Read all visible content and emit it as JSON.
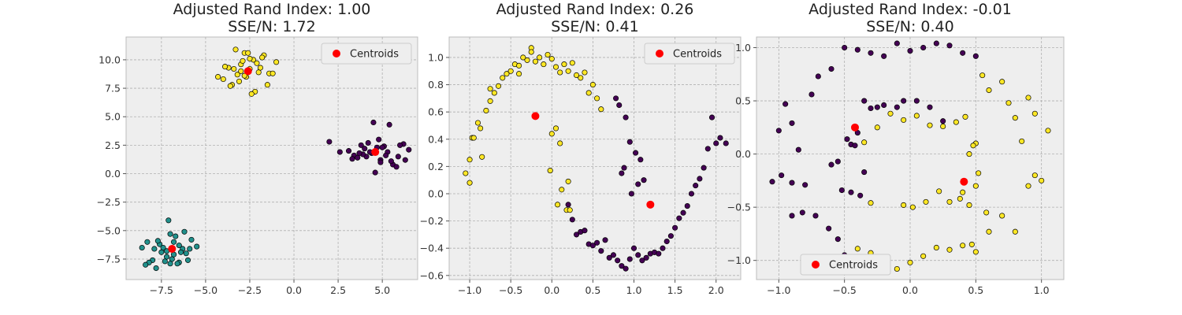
{
  "figure": {
    "background": "#ffffff",
    "axes_background": "#eeeeee"
  },
  "chart_data": [
    {
      "type": "scatter",
      "title": "Adjusted Rand Index: 1.00\nSSE/N: 1.72",
      "xlim": [
        -9.5,
        7.0
      ],
      "ylim": [
        -9.3,
        12.0
      ],
      "xticks": [
        -7.5,
        -5.0,
        -2.5,
        0.0,
        2.5,
        5.0
      ],
      "xtick_labels": [
        "−7.5",
        "−5.0",
        "−2.5",
        "0.0",
        "2.5",
        "5.0"
      ],
      "yticks": [
        -7.5,
        -5.0,
        -2.5,
        0.0,
        2.5,
        5.0,
        7.5,
        10.0
      ],
      "ytick_labels": [
        "−7.5",
        "−5.0",
        "−2.5",
        "0.0",
        "2.5",
        "5.0",
        "7.5",
        "10.0"
      ],
      "grid": true,
      "legend": {
        "label": "Centroids",
        "position": "top-right"
      },
      "series": [
        {
          "color": "#440154",
          "x": [
            2.0,
            2.6,
            3.1,
            3.4,
            3.8,
            4.1,
            4.4,
            4.7,
            4.9,
            5.3,
            5.6,
            5.9,
            6.2,
            6.5,
            3.6,
            4.2,
            5.1,
            4.6,
            3.9,
            5.5,
            4.8,
            6.0,
            5.2,
            4.3,
            3.3,
            5.8,
            4.0,
            4.5,
            5.0,
            5.4,
            3.7,
            4.9,
            6.3
          ],
          "y": [
            2.8,
            1.9,
            2.0,
            1.6,
            2.5,
            1.5,
            1.8,
            2.3,
            1.2,
            1.9,
            0.8,
            1.5,
            2.6,
            2.1,
            1.4,
            2.7,
            2.4,
            0.1,
            1.7,
            1.1,
            3.0,
            2.5,
            1.6,
            1.9,
            1.3,
            0.6,
            2.2,
            4.5,
            2.3,
            4.3,
            1.8,
            1.0,
            1.2
          ]
        },
        {
          "color": "#21918c",
          "x": [
            -8.6,
            -8.3,
            -8.0,
            -7.8,
            -7.5,
            -7.2,
            -7.0,
            -6.8,
            -6.5,
            -6.3,
            -6.0,
            -5.8,
            -5.5,
            -8.2,
            -7.6,
            -7.1,
            -6.7,
            -6.4,
            -6.1,
            -7.4,
            -6.9,
            -7.9,
            -6.6,
            -8.4,
            -7.3,
            -6.2,
            -7.0,
            -6.5,
            -7.7,
            -5.9,
            -6.8,
            -7.2
          ],
          "y": [
            -6.5,
            -6.0,
            -7.6,
            -8.3,
            -6.9,
            -7.3,
            -5.3,
            -6.0,
            -7.8,
            -6.6,
            -7.6,
            -5.8,
            -6.4,
            -7.8,
            -6.2,
            -4.1,
            -5.5,
            -6.9,
            -7.0,
            -6.5,
            -7.5,
            -6.6,
            -7.9,
            -8.0,
            -7.7,
            -5.1,
            -7.9,
            -6.3,
            -5.9,
            -6.6,
            -7.1,
            -6.8
          ]
        },
        {
          "color": "#fde725",
          "x": [
            -4.3,
            -4.0,
            -3.7,
            -3.5,
            -3.2,
            -3.0,
            -2.8,
            -2.5,
            -2.3,
            -2.0,
            -1.7,
            -1.4,
            -1.0,
            -3.9,
            -3.4,
            -3.1,
            -2.9,
            -2.6,
            -2.2,
            -1.9,
            -1.5,
            -3.3,
            -2.7,
            -2.4,
            -2.1,
            -3.6,
            -1.2,
            -2.5,
            -2.8,
            -3.0,
            -1.8
          ],
          "y": [
            8.5,
            8.3,
            9.3,
            7.8,
            8.7,
            9.6,
            10.6,
            9.2,
            10.0,
            8.9,
            10.4,
            8.8,
            9.8,
            9.4,
            9.2,
            8.1,
            9.9,
            10.6,
            7.2,
            9.3,
            7.8,
            10.9,
            8.5,
            7.0,
            9.7,
            7.7,
            8.8,
            10.1,
            8.6,
            9.0,
            10.2
          ]
        }
      ],
      "centroids": {
        "color": "#ff0000",
        "x": [
          -2.6,
          -6.9,
          4.6
        ],
        "y": [
          9.0,
          -6.6,
          1.9
        ]
      }
    },
    {
      "type": "scatter",
      "title": "Adjusted Rand Index: 0.26\nSSE/N: 0.41",
      "xlim": [
        -1.25,
        2.3
      ],
      "ylim": [
        -0.63,
        1.15
      ],
      "xticks": [
        -1.0,
        -0.5,
        0.0,
        0.5,
        1.0,
        1.5,
        2.0
      ],
      "xtick_labels": [
        "−1.0",
        "−0.5",
        "0.0",
        "0.5",
        "1.0",
        "1.5",
        "2.0"
      ],
      "yticks": [
        -0.6,
        -0.4,
        -0.2,
        0.0,
        0.2,
        0.4,
        0.6,
        0.8,
        1.0
      ],
      "ytick_labels": [
        "−0.6",
        "−0.4",
        "−0.2",
        "0.0",
        "0.2",
        "0.4",
        "0.6",
        "0.8",
        "1.0"
      ],
      "grid": true,
      "legend": {
        "label": "Centroids",
        "position": "top-right"
      },
      "series": [
        {
          "color": "#fde725",
          "x": [
            -1.05,
            -1.0,
            -0.97,
            -0.9,
            -0.87,
            -0.8,
            -0.75,
            -0.7,
            -0.65,
            -0.6,
            -0.55,
            -0.5,
            -0.45,
            -0.4,
            -0.35,
            -0.3,
            -0.25,
            -0.2,
            -0.15,
            -0.1,
            -0.05,
            0.0,
            0.05,
            0.1,
            0.15,
            0.2,
            0.25,
            0.3,
            0.35,
            0.4,
            0.45,
            0.5,
            0.55,
            0.6,
            -1.0,
            -0.95,
            -0.85,
            -0.75,
            -0.4,
            -0.25,
            0.0,
            0.05,
            0.1,
            0.2,
            -0.02,
            0.07,
            0.18,
            0.22,
            0.12
          ],
          "y": [
            0.15,
            0.25,
            0.41,
            0.52,
            0.48,
            0.61,
            0.68,
            0.74,
            0.79,
            0.85,
            0.88,
            0.9,
            0.95,
            0.94,
            1.0,
            0.98,
            1.07,
            0.97,
            1.0,
            0.95,
            1.02,
            0.99,
            0.93,
            0.89,
            0.95,
            0.9,
            0.96,
            0.87,
            0.85,
            0.89,
            0.74,
            0.8,
            0.7,
            0.62,
            0.08,
            0.41,
            0.27,
            0.77,
            0.88,
            1.04,
            0.44,
            0.48,
            0.37,
            0.09,
            0.17,
            -0.08,
            -0.12,
            -0.12,
            0.03
          ]
        },
        {
          "color": "#440154",
          "x": [
            0.2,
            0.25,
            0.3,
            0.35,
            0.4,
            0.45,
            0.5,
            0.55,
            0.6,
            0.65,
            0.7,
            0.75,
            0.8,
            0.85,
            0.9,
            0.95,
            1.0,
            1.05,
            1.1,
            1.15,
            1.2,
            1.25,
            1.3,
            1.35,
            1.4,
            1.45,
            1.5,
            1.55,
            1.6,
            1.65,
            1.7,
            1.75,
            1.8,
            1.85,
            1.9,
            1.95,
            2.0,
            2.05,
            2.12,
            0.78,
            0.82,
            0.9,
            0.95,
            1.02,
            1.08,
            0.88,
            0.85,
            1.05,
            1.12,
            0.97
          ],
          "y": [
            -0.08,
            -0.19,
            -0.3,
            -0.28,
            -0.27,
            -0.37,
            -0.38,
            -0.36,
            -0.42,
            -0.34,
            -0.47,
            -0.45,
            -0.49,
            -0.53,
            -0.55,
            -0.48,
            -0.4,
            -0.45,
            -0.49,
            -0.47,
            -0.44,
            -0.43,
            -0.44,
            -0.4,
            -0.35,
            -0.31,
            -0.25,
            -0.18,
            -0.14,
            -0.09,
            0.0,
            0.06,
            0.11,
            0.19,
            0.33,
            0.56,
            0.37,
            0.41,
            0.37,
            0.7,
            0.65,
            0.56,
            0.38,
            0.3,
            0.25,
            0.19,
            0.15,
            0.07,
            0.1,
            0.0
          ]
        }
      ],
      "centroids": {
        "color": "#ff0000",
        "x": [
          -0.2,
          1.2
        ],
        "y": [
          0.57,
          -0.08
        ]
      }
    },
    {
      "type": "scatter",
      "title": "Adjusted Rand Index: -0.01\nSSE/N: 0.40",
      "xlim": [
        -1.17,
        1.17
      ],
      "ylim": [
        -1.18,
        1.1
      ],
      "xticks": [
        -1.0,
        -0.5,
        0.0,
        0.5,
        1.0
      ],
      "xtick_labels": [
        "−1.0",
        "−0.5",
        "0.0",
        "0.5",
        "1.0"
      ],
      "yticks": [
        -1.0,
        -0.5,
        0.0,
        0.5,
        1.0
      ],
      "ytick_labels": [
        "−1.0",
        "−0.5",
        "0.0",
        "0.5",
        "1.0"
      ],
      "grid": true,
      "legend": {
        "label": "Centroids",
        "position": "bottom-left"
      },
      "series": [
        {
          "color": "#440154",
          "x": [
            -1.0,
            -0.95,
            -0.9,
            -0.85,
            -0.8,
            -0.75,
            -0.7,
            -0.6,
            -0.5,
            -0.4,
            -0.3,
            -0.2,
            -0.1,
            0.0,
            0.1,
            0.2,
            0.3,
            0.4,
            0.5,
            -1.05,
            -0.98,
            -0.9,
            -0.82,
            -0.72,
            -0.62,
            -0.55,
            -0.5,
            -0.45,
            -0.4,
            -0.35,
            -0.3,
            -0.25,
            -0.2,
            -0.1,
            -0.05,
            0.05,
            0.15,
            0.25,
            -0.48,
            -0.42,
            -0.35,
            -0.55,
            -0.6,
            -0.38,
            -0.45,
            -0.52,
            -0.9
          ],
          "y": [
            0.22,
            0.47,
            0.29,
            0.04,
            -0.29,
            0.56,
            0.73,
            0.8,
            1.0,
            0.98,
            0.95,
            0.92,
            1.04,
            0.97,
            1.0,
            1.04,
            1.02,
            0.95,
            0.92,
            -0.26,
            -0.2,
            -0.27,
            -0.55,
            -0.58,
            -0.7,
            -0.8,
            -0.95,
            0.09,
            0.2,
            0.5,
            0.43,
            0.44,
            0.46,
            0.44,
            0.5,
            0.5,
            0.44,
            0.31,
            0.14,
            0.08,
            -0.17,
            -0.07,
            -0.1,
            -0.39,
            -0.36,
            -0.34,
            -0.58
          ]
        },
        {
          "color": "#fde725",
          "x": [
            0.55,
            0.6,
            0.7,
            0.75,
            0.8,
            0.85,
            0.9,
            0.95,
            1.0,
            1.05,
            0.95,
            0.9,
            0.8,
            0.7,
            0.6,
            0.5,
            0.4,
            0.3,
            0.2,
            0.1,
            0.0,
            -0.1,
            -0.2,
            -0.3,
            -0.4,
            0.5,
            0.48,
            0.42,
            0.35,
            0.25,
            0.15,
            0.05,
            -0.05,
            -0.15,
            -0.25,
            -0.35,
            0.45,
            0.4,
            0.5,
            0.3,
            0.45,
            0.52,
            0.58,
            0.47,
            0.38,
            0.22,
            0.12,
            -0.3,
            -0.05,
            0.02
          ],
          "y": [
            0.74,
            0.6,
            0.68,
            0.48,
            0.34,
            0.12,
            -0.3,
            -0.2,
            -0.25,
            0.22,
            0.38,
            0.53,
            -0.73,
            -0.58,
            -0.73,
            -0.92,
            -0.86,
            -0.9,
            -0.88,
            -0.96,
            -1.02,
            -1.08,
            -0.99,
            -0.93,
            -0.89,
            0.1,
            0.08,
            0.35,
            0.3,
            0.26,
            0.27,
            0.36,
            0.32,
            0.38,
            0.25,
            0.11,
            -0.48,
            -0.36,
            -0.3,
            -0.45,
            0.0,
            -0.18,
            -0.55,
            -0.85,
            -0.42,
            -0.35,
            -0.45,
            -0.46,
            -0.48,
            -0.5
          ]
        }
      ],
      "centroids": {
        "color": "#ff0000",
        "x": [
          -0.42,
          0.41
        ],
        "y": [
          0.25,
          -0.26
        ]
      }
    }
  ]
}
